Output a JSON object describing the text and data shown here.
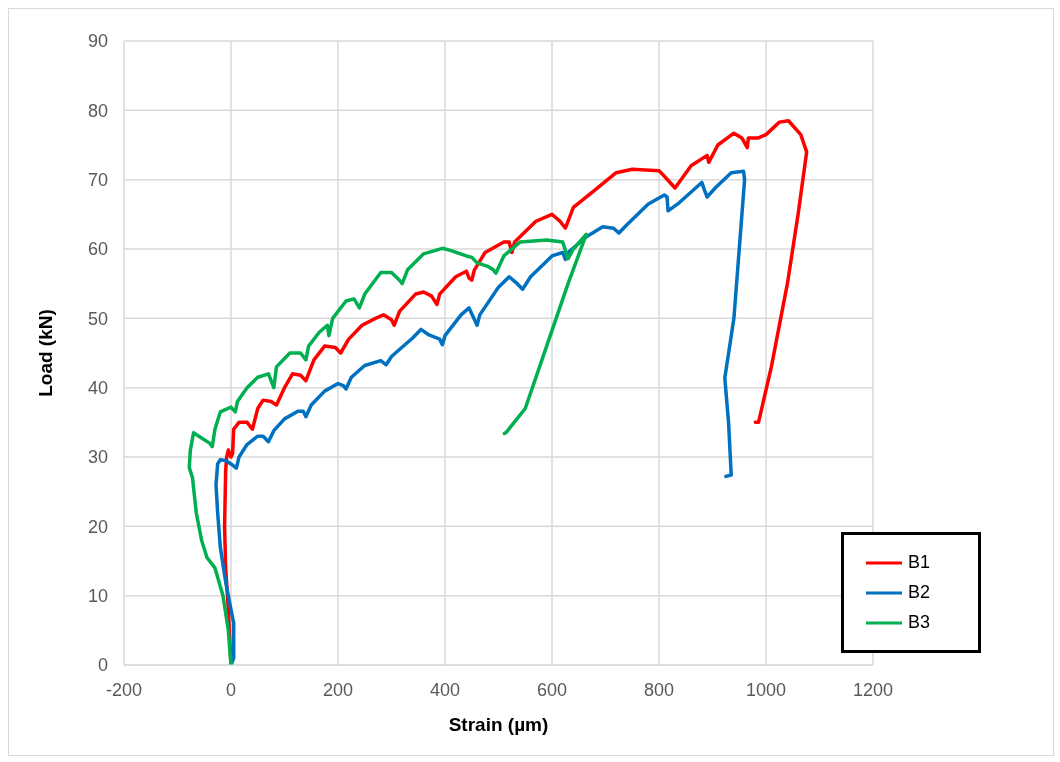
{
  "chart_data": {
    "type": "line",
    "xlabel": "Strain (µm)",
    "ylabel": "Load (kN)",
    "xlim": [
      -200,
      1200
    ],
    "xticks": [
      -200,
      0,
      200,
      400,
      600,
      800,
      1000,
      1200
    ],
    "ylim": [
      0,
      90
    ],
    "yticks": [
      0,
      10,
      20,
      30,
      40,
      50,
      60,
      70,
      80,
      90
    ],
    "grid": true,
    "legend": "bottom right",
    "marker": "none",
    "line_style": "solid",
    "series": [
      {
        "name": "B1",
        "color": "#ff0000",
        "x": [
          0,
          -5,
          -10,
          -12,
          -10,
          -8,
          -5,
          0,
          3,
          5,
          15,
          30,
          40,
          50,
          60,
          75,
          85,
          100,
          115,
          130,
          140,
          155,
          175,
          195,
          205,
          220,
          245,
          270,
          285,
          300,
          305,
          315,
          345,
          360,
          375,
          385,
          390,
          420,
          440,
          445,
          450,
          455,
          475,
          510,
          520,
          525,
          530,
          570,
          600,
          615,
          625,
          640,
          680,
          720,
          750,
          800,
          810,
          830,
          860,
          890,
          893,
          910,
          940,
          955,
          965,
          967,
          985,
          1000,
          1025,
          1042,
          1065,
          1076,
          1060,
          1040,
          1010,
          986,
          980
        ],
        "values": [
          0,
          8,
          14,
          20,
          28,
          30,
          31,
          30,
          30.5,
          34,
          35,
          35,
          34,
          37,
          38.2,
          38,
          37.5,
          40,
          42,
          41.8,
          41,
          44,
          46,
          45.8,
          45,
          47,
          49,
          50,
          50.5,
          49.8,
          49,
          51,
          53.5,
          53.8,
          53.2,
          52,
          53.5,
          56,
          56.8,
          55.8,
          55.5,
          57,
          59.5,
          61,
          61,
          59.5,
          61,
          64,
          65,
          64,
          63,
          66,
          68.5,
          71,
          71.5,
          71.3,
          70.5,
          68.8,
          72,
          73.5,
          72.5,
          75,
          76.7,
          76,
          74.6,
          76,
          76,
          76.5,
          78.3,
          78.5,
          76.5,
          74,
          65,
          55,
          43,
          35,
          35
        ]
      },
      {
        "name": "B2",
        "color": "#0070c0",
        "x": [
          0,
          5,
          5,
          0,
          -10,
          -20,
          -25,
          -28,
          -25,
          -20,
          -10,
          0,
          10,
          15,
          30,
          50,
          60,
          70,
          80,
          100,
          125,
          135,
          140,
          150,
          175,
          200,
          210,
          215,
          225,
          250,
          280,
          290,
          300,
          340,
          355,
          370,
          390,
          395,
          400,
          430,
          445,
          460,
          465,
          500,
          520,
          535,
          545,
          560,
          600,
          620,
          625,
          630,
          665,
          695,
          715,
          725,
          740,
          780,
          810,
          815,
          817,
          835,
          880,
          885,
          890,
          905,
          935,
          958,
          960,
          950,
          940,
          923,
          930,
          935,
          925
        ],
        "values": [
          0,
          1,
          6,
          8,
          12,
          17,
          22,
          26,
          29,
          29.6,
          29.5,
          29,
          28.4,
          30,
          31.8,
          33,
          33,
          32.2,
          33.8,
          35.5,
          36.6,
          36.6,
          35.8,
          37.5,
          39.5,
          40.6,
          40.3,
          39.8,
          41.5,
          43.2,
          43.9,
          43.3,
          44.5,
          47.2,
          48.4,
          47.6,
          47,
          46.2,
          47.5,
          50.5,
          51.5,
          49,
          50.5,
          54.5,
          56,
          55,
          54.2,
          56,
          59,
          59.5,
          58.5,
          59.5,
          61.8,
          63.2,
          63,
          62.3,
          63.5,
          66.5,
          67.8,
          67.5,
          65.5,
          66.5,
          69.6,
          68.5,
          67.5,
          68.8,
          71,
          71.2,
          70,
          60,
          50,
          41.4,
          35,
          27.4,
          27.2
        ]
      },
      {
        "name": "B3",
        "color": "#00b050",
        "x": [
          0,
          -5,
          -15,
          -30,
          -45,
          -55,
          -65,
          -72,
          -78,
          -76,
          -70,
          -60,
          -50,
          -40,
          -35,
          -30,
          -20,
          0,
          8,
          12,
          30,
          50,
          70,
          75,
          80,
          85,
          110,
          130,
          140,
          145,
          165,
          180,
          183,
          190,
          215,
          230,
          240,
          250,
          280,
          300,
          315,
          320,
          330,
          360,
          395,
          410,
          440,
          450,
          460,
          480,
          490,
          495,
          510,
          540,
          590,
          620,
          630,
          640,
          664,
          630,
          590,
          550,
          515,
          511
        ],
        "values": [
          0,
          5,
          10,
          14,
          15.5,
          18,
          22,
          27,
          28.5,
          31,
          33.5,
          33,
          32.5,
          32,
          31.5,
          34,
          36.5,
          37.2,
          36.5,
          38,
          40,
          41.5,
          42,
          41,
          40,
          43,
          45,
          45,
          44,
          46,
          48,
          49,
          47.5,
          50,
          52.5,
          52.8,
          51.5,
          53.5,
          56.6,
          56.6,
          55.5,
          55,
          57,
          59.3,
          60.1,
          59.8,
          59,
          58.8,
          58,
          57.5,
          57,
          56.5,
          59,
          61,
          61.3,
          61,
          58.6,
          60,
          62.1,
          55,
          46,
          37,
          33.6,
          33.4
        ]
      }
    ]
  }
}
